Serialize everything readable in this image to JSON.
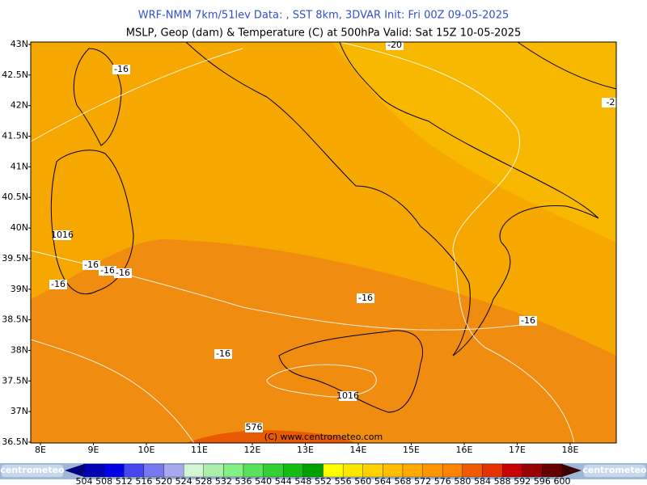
{
  "header": {
    "line1": "WRF-NMM 7km/51lev   Data: , SST 8km, 3DVAR   Init: Fri 00Z 09-05-2025",
    "line2": "MSLP, Geop (dam) & Temperature (C) at 500hPa   Valid: Sat 15Z 10-05-2025"
  },
  "map": {
    "lat_labels": [
      "43N",
      "42.5N",
      "42N",
      "41.5N",
      "41N",
      "40.5N",
      "40N",
      "39.5N",
      "39N",
      "38.5N",
      "38N",
      "37.5N",
      "37N",
      "36.5N"
    ],
    "lon_labels": [
      "8E",
      "9E",
      "10E",
      "11E",
      "12E",
      "13E",
      "14E",
      "15E",
      "16E",
      "17E",
      "18E"
    ],
    "contour_labels": [
      "-16",
      "-20",
      "-2",
      "1016",
      "-16",
      "-16",
      "-16",
      "-16",
      "-16",
      "-16",
      "-16",
      "1016",
      "576"
    ],
    "copyright": "(C) www.centrometeo.com"
  },
  "colorbar": {
    "labels": [
      504,
      508,
      512,
      516,
      520,
      524,
      528,
      532,
      536,
      540,
      544,
      548,
      552,
      556,
      560,
      564,
      568,
      572,
      576,
      580,
      584,
      588,
      592,
      596,
      600
    ],
    "colors": [
      "#0000b4",
      "#0000e6",
      "#4646f0",
      "#7878f0",
      "#a8a8f0",
      "#d2f5d2",
      "#aaf0aa",
      "#82f082",
      "#5ae05a",
      "#32d032",
      "#14bc14",
      "#00a000",
      "#ffff00",
      "#ffe600",
      "#ffd200",
      "#ffbe00",
      "#ffaa00",
      "#ff9600",
      "#ff8200",
      "#f05a00",
      "#e63200",
      "#c80000",
      "#960000",
      "#640000"
    ],
    "under_color": "#000080",
    "over_color": "#3c0000"
  },
  "logos": [
    "centrometeo",
    "centrometeo"
  ]
}
